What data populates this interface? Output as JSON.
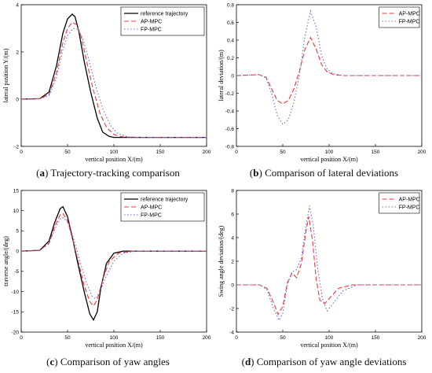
{
  "chart_data": [
    {
      "type": "line",
      "caption_tag": "(a)",
      "caption_text": "Trajectory-tracking comparison",
      "xlabel": "vertical position X/(m)",
      "ylabel": "lateral position Y/(m)",
      "xlim": [
        0,
        200
      ],
      "ylim": [
        -2,
        4
      ],
      "xticks": [
        0,
        50,
        100,
        150,
        200
      ],
      "yticks": [
        -2,
        0,
        2,
        4
      ],
      "legend_position": "top-right",
      "series": [
        {
          "name": "reference trajectory",
          "color": "#000000",
          "dash": "solid",
          "x": [
            0,
            20,
            30,
            38,
            45,
            50,
            55,
            58,
            62,
            68,
            75,
            82,
            88,
            95,
            100,
            110,
            130,
            200
          ],
          "y": [
            0,
            0.02,
            0.3,
            1.4,
            2.8,
            3.4,
            3.6,
            3.5,
            2.9,
            1.6,
            0.3,
            -0.8,
            -1.4,
            -1.58,
            -1.62,
            -1.62,
            -1.62,
            -1.62
          ]
        },
        {
          "name": "AP-MPC",
          "color": "#e8383d",
          "dash": "dashed",
          "x": [
            0,
            20,
            30,
            38,
            45,
            50,
            55,
            60,
            65,
            70,
            77,
            85,
            92,
            100,
            110,
            130,
            200
          ],
          "y": [
            0,
            0.02,
            0.2,
            1.1,
            2.4,
            3.0,
            3.25,
            3.15,
            2.6,
            1.7,
            0.5,
            -0.6,
            -1.2,
            -1.5,
            -1.6,
            -1.62,
            -1.62
          ]
        },
        {
          "name": "FP-MPC",
          "color": "#6a6ad8",
          "dash": "dotted",
          "x": [
            0,
            20,
            30,
            38,
            45,
            50,
            56,
            62,
            67,
            72,
            80,
            88,
            96,
            104,
            115,
            135,
            200
          ],
          "y": [
            0,
            0.02,
            0.15,
            0.9,
            2.1,
            2.7,
            3.0,
            2.95,
            2.5,
            1.8,
            0.6,
            -0.4,
            -1.1,
            -1.45,
            -1.6,
            -1.62,
            -1.62
          ]
        }
      ]
    },
    {
      "type": "line",
      "caption_tag": "(b)",
      "caption_text": "Comparison of lateral deviations",
      "xlabel": "vertical position X/(m)",
      "ylabel": "lateral deviation/(m)",
      "xlim": [
        0,
        200
      ],
      "ylim": [
        -0.8,
        0.8
      ],
      "xticks": [
        0,
        50,
        100,
        150,
        200
      ],
      "yticks": [
        -0.8,
        -0.6,
        -0.4,
        -0.2,
        0,
        0.2,
        0.4,
        0.6,
        0.8
      ],
      "legend_position": "top-right",
      "series": [
        {
          "name": "AP-MPC",
          "color": "#e8383d",
          "dash": "dashed",
          "x": [
            0,
            25,
            32,
            38,
            44,
            50,
            56,
            62,
            68,
            74,
            80,
            86,
            92,
            98,
            105,
            115,
            140,
            200
          ],
          "y": [
            0,
            0.01,
            -0.02,
            -0.15,
            -0.28,
            -0.32,
            -0.28,
            -0.15,
            0.05,
            0.3,
            0.43,
            0.3,
            0.12,
            0.04,
            0.01,
            0,
            0,
            0
          ]
        },
        {
          "name": "FP-MPC",
          "color": "#6a6ad8",
          "dash": "dotted",
          "x": [
            0,
            25,
            32,
            38,
            44,
            50,
            56,
            62,
            68,
            74,
            80,
            86,
            92,
            98,
            105,
            115,
            140,
            200
          ],
          "y": [
            0,
            0.01,
            -0.03,
            -0.2,
            -0.45,
            -0.55,
            -0.5,
            -0.3,
            0.0,
            0.45,
            0.73,
            0.55,
            0.22,
            0.07,
            0.02,
            0,
            0,
            0
          ]
        }
      ]
    },
    {
      "type": "line",
      "caption_tag": "(c)",
      "caption_text": "Comparison of yaw angles",
      "xlabel": "vertical position X/(m)",
      "ylabel": "traverse angle/(deg)",
      "xlim": [
        0,
        200
      ],
      "ylim": [
        -20,
        15
      ],
      "xticks": [
        0,
        50,
        100,
        150,
        200
      ],
      "yticks": [
        -20,
        -15,
        -10,
        -5,
        0,
        5,
        10,
        15
      ],
      "legend_position": "top-right",
      "series": [
        {
          "name": "reference trajectory",
          "color": "#000000",
          "dash": "solid",
          "x": [
            0,
            20,
            30,
            36,
            42,
            45,
            50,
            56,
            62,
            68,
            74,
            78,
            82,
            86,
            92,
            100,
            110,
            200
          ],
          "y": [
            0,
            0.2,
            2.5,
            7,
            10.5,
            11,
            8.5,
            2.5,
            -4,
            -10,
            -15.5,
            -17,
            -15,
            -9,
            -3,
            -0.5,
            0,
            0
          ]
        },
        {
          "name": "AP-MPC",
          "color": "#e8383d",
          "dash": "dashed",
          "x": [
            0,
            20,
            30,
            36,
            42,
            45,
            50,
            56,
            62,
            68,
            74,
            78,
            82,
            88,
            95,
            105,
            120,
            200
          ],
          "y": [
            0,
            0.2,
            2,
            6,
            9,
            9.3,
            7.5,
            2.5,
            -3,
            -8.5,
            -12.5,
            -13.5,
            -12,
            -7,
            -2.5,
            -0.5,
            0,
            0
          ]
        },
        {
          "name": "FP-MPC",
          "color": "#6a6ad8",
          "dash": "dotted",
          "x": [
            0,
            20,
            30,
            36,
            42,
            46,
            52,
            58,
            64,
            70,
            76,
            80,
            85,
            92,
            100,
            110,
            125,
            200
          ],
          "y": [
            0,
            0.2,
            1.8,
            5.3,
            8,
            8.3,
            6.5,
            2,
            -3,
            -7.5,
            -11,
            -11.8,
            -10,
            -6,
            -2.5,
            -0.5,
            0,
            0
          ]
        }
      ]
    },
    {
      "type": "line",
      "caption_tag": "(d)",
      "caption_text": "Comparison of yaw angle deviations",
      "xlabel": "vertical position X/(m)",
      "ylabel": "Swing angle deviation/(deg)",
      "xlim": [
        0,
        200
      ],
      "ylim": [
        -4,
        8
      ],
      "xticks": [
        0,
        50,
        100,
        150,
        200
      ],
      "yticks": [
        -4,
        -2,
        0,
        2,
        4,
        6,
        8
      ],
      "legend_position": "top-right",
      "series": [
        {
          "name": "AP-MPC",
          "color": "#e8383d",
          "dash": "dashed",
          "x": [
            0,
            25,
            33,
            40,
            45,
            50,
            55,
            60,
            65,
            70,
            75,
            78,
            82,
            86,
            90,
            95,
            102,
            110,
            125,
            200
          ],
          "y": [
            0,
            0,
            -0.3,
            -1.5,
            -2.5,
            -1.8,
            0.2,
            1.0,
            0.6,
            1.8,
            4.5,
            5.8,
            3.8,
            0.5,
            -1.3,
            -1.6,
            -1.0,
            -0.3,
            0,
            0
          ]
        },
        {
          "name": "FP-MPC",
          "color": "#6a6ad8",
          "dash": "dotted",
          "x": [
            0,
            25,
            33,
            40,
            46,
            50,
            55,
            60,
            65,
            70,
            75,
            79,
            83,
            88,
            93,
            98,
            105,
            115,
            130,
            200
          ],
          "y": [
            0,
            0,
            -0.4,
            -2.0,
            -3.0,
            -2.4,
            0.0,
            1.1,
            1.3,
            2.3,
            5.0,
            6.7,
            5.0,
            1.2,
            -1.2,
            -2.2,
            -1.5,
            -0.5,
            0,
            0
          ]
        }
      ]
    }
  ]
}
